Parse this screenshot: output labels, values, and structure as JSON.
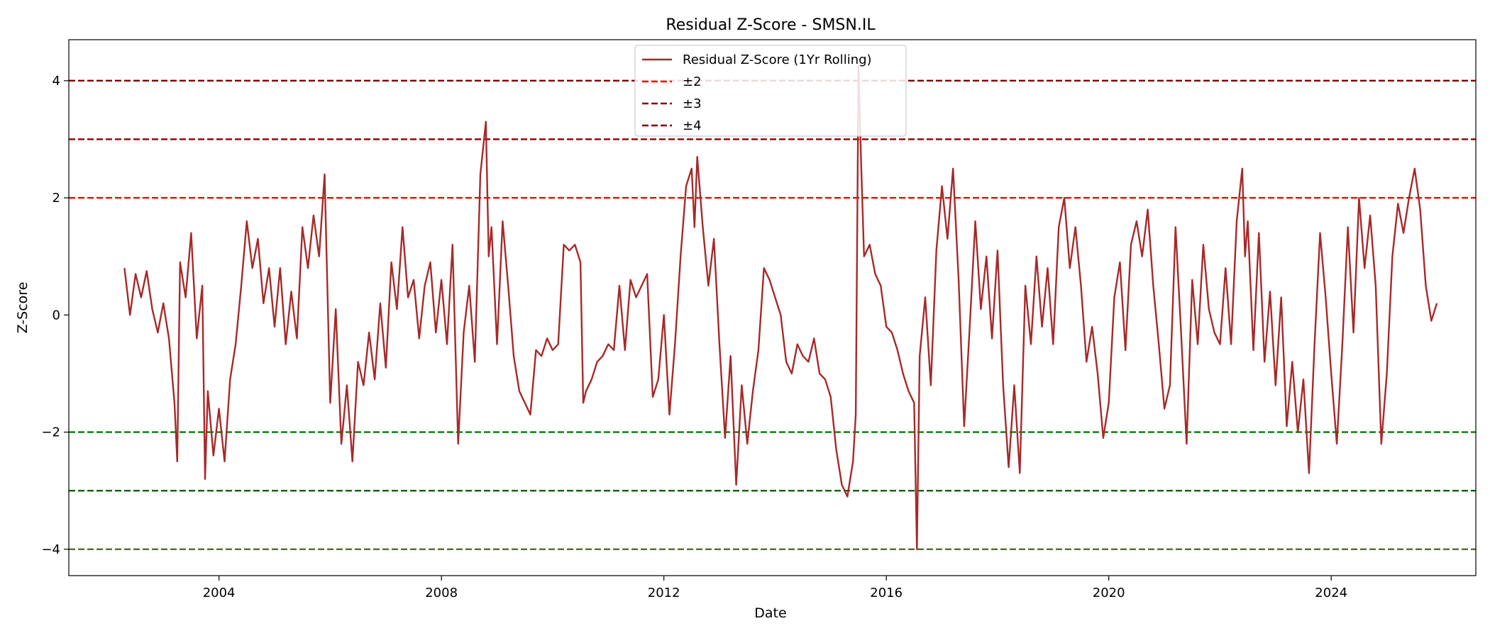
{
  "chart_data": {
    "type": "line",
    "title": "Residual Z-Score - SMSN.IL",
    "xlabel": "Date",
    "ylabel": "Z-Score",
    "xlim": [
      2001.3,
      2026.6
    ],
    "ylim": [
      -4.45,
      4.7
    ],
    "grid": false,
    "legend_position": "top-center",
    "x_ticks": [
      2004,
      2008,
      2012,
      2016,
      2020,
      2024
    ],
    "x_tick_labels": [
      "2004",
      "2008",
      "2012",
      "2016",
      "2020",
      "2024"
    ],
    "y_ticks": [
      -4,
      -2,
      0,
      2,
      4
    ],
    "y_tick_labels": [
      "−4",
      "−2",
      "0",
      "2",
      "4"
    ],
    "series": [
      {
        "name": "Residual Z-Score (1Yr Rolling)",
        "color": "#a52a2a",
        "points": [
          [
            2002.3,
            0.8
          ],
          [
            2002.4,
            0.0
          ],
          [
            2002.5,
            0.7
          ],
          [
            2002.6,
            0.3
          ],
          [
            2002.7,
            0.75
          ],
          [
            2002.8,
            0.1
          ],
          [
            2002.9,
            -0.3
          ],
          [
            2003.0,
            0.2
          ],
          [
            2003.1,
            -0.4
          ],
          [
            2003.2,
            -1.5
          ],
          [
            2003.25,
            -2.5
          ],
          [
            2003.3,
            0.9
          ],
          [
            2003.4,
            0.3
          ],
          [
            2003.5,
            1.4
          ],
          [
            2003.6,
            -0.4
          ],
          [
            2003.7,
            0.5
          ],
          [
            2003.75,
            -2.8
          ],
          [
            2003.8,
            -1.3
          ],
          [
            2003.9,
            -2.4
          ],
          [
            2004.0,
            -1.6
          ],
          [
            2004.1,
            -2.5
          ],
          [
            2004.2,
            -1.1
          ],
          [
            2004.3,
            -0.5
          ],
          [
            2004.4,
            0.5
          ],
          [
            2004.5,
            1.6
          ],
          [
            2004.6,
            0.8
          ],
          [
            2004.7,
            1.3
          ],
          [
            2004.8,
            0.2
          ],
          [
            2004.9,
            0.8
          ],
          [
            2005.0,
            -0.2
          ],
          [
            2005.1,
            0.8
          ],
          [
            2005.2,
            -0.5
          ],
          [
            2005.3,
            0.4
          ],
          [
            2005.4,
            -0.4
          ],
          [
            2005.5,
            1.5
          ],
          [
            2005.6,
            0.8
          ],
          [
            2005.7,
            1.7
          ],
          [
            2005.8,
            1.0
          ],
          [
            2005.9,
            2.4
          ],
          [
            2006.0,
            -1.5
          ],
          [
            2006.1,
            0.1
          ],
          [
            2006.2,
            -2.2
          ],
          [
            2006.3,
            -1.2
          ],
          [
            2006.4,
            -2.5
          ],
          [
            2006.5,
            -0.8
          ],
          [
            2006.6,
            -1.2
          ],
          [
            2006.7,
            -0.3
          ],
          [
            2006.8,
            -1.1
          ],
          [
            2006.9,
            0.2
          ],
          [
            2007.0,
            -0.9
          ],
          [
            2007.1,
            0.9
          ],
          [
            2007.2,
            0.1
          ],
          [
            2007.3,
            1.5
          ],
          [
            2007.4,
            0.3
          ],
          [
            2007.5,
            0.6
          ],
          [
            2007.6,
            -0.4
          ],
          [
            2007.7,
            0.5
          ],
          [
            2007.8,
            0.9
          ],
          [
            2007.9,
            -0.3
          ],
          [
            2008.0,
            0.6
          ],
          [
            2008.1,
            -0.5
          ],
          [
            2008.2,
            1.2
          ],
          [
            2008.3,
            -2.2
          ],
          [
            2008.4,
            -0.3
          ],
          [
            2008.5,
            0.5
          ],
          [
            2008.6,
            -0.8
          ],
          [
            2008.7,
            2.4
          ],
          [
            2008.8,
            3.3
          ],
          [
            2008.85,
            1.0
          ],
          [
            2008.9,
            1.5
          ],
          [
            2009.0,
            -0.5
          ],
          [
            2009.1,
            1.6
          ],
          [
            2009.2,
            0.5
          ],
          [
            2009.3,
            -0.7
          ],
          [
            2009.4,
            -1.3
          ],
          [
            2009.5,
            -1.5
          ],
          [
            2009.6,
            -1.7
          ],
          [
            2009.7,
            -0.6
          ],
          [
            2009.8,
            -0.7
          ],
          [
            2009.9,
            -0.4
          ],
          [
            2010.0,
            -0.6
          ],
          [
            2010.1,
            -0.5
          ],
          [
            2010.2,
            1.2
          ],
          [
            2010.3,
            1.1
          ],
          [
            2010.4,
            1.2
          ],
          [
            2010.5,
            0.9
          ],
          [
            2010.55,
            -1.5
          ],
          [
            2010.6,
            -1.3
          ],
          [
            2010.7,
            -1.1
          ],
          [
            2010.8,
            -0.8
          ],
          [
            2010.9,
            -0.7
          ],
          [
            2011.0,
            -0.5
          ],
          [
            2011.1,
            -0.6
          ],
          [
            2011.2,
            0.5
          ],
          [
            2011.3,
            -0.6
          ],
          [
            2011.4,
            0.6
          ],
          [
            2011.5,
            0.3
          ],
          [
            2011.6,
            0.5
          ],
          [
            2011.7,
            0.7
          ],
          [
            2011.8,
            -1.4
          ],
          [
            2011.9,
            -1.1
          ],
          [
            2012.0,
            0.0
          ],
          [
            2012.1,
            -1.7
          ],
          [
            2012.2,
            -0.5
          ],
          [
            2012.3,
            1.0
          ],
          [
            2012.4,
            2.2
          ],
          [
            2012.5,
            2.5
          ],
          [
            2012.55,
            1.5
          ],
          [
            2012.6,
            2.7
          ],
          [
            2012.7,
            1.5
          ],
          [
            2012.8,
            0.5
          ],
          [
            2012.9,
            1.3
          ],
          [
            2013.0,
            -0.5
          ],
          [
            2013.1,
            -2.1
          ],
          [
            2013.2,
            -0.7
          ],
          [
            2013.3,
            -2.9
          ],
          [
            2013.4,
            -1.2
          ],
          [
            2013.5,
            -2.2
          ],
          [
            2013.6,
            -1.3
          ],
          [
            2013.7,
            -0.6
          ],
          [
            2013.8,
            0.8
          ],
          [
            2013.9,
            0.6
          ],
          [
            2014.0,
            0.3
          ],
          [
            2014.1,
            0.0
          ],
          [
            2014.2,
            -0.8
          ],
          [
            2014.3,
            -1.0
          ],
          [
            2014.4,
            -0.5
          ],
          [
            2014.5,
            -0.7
          ],
          [
            2014.6,
            -0.8
          ],
          [
            2014.7,
            -0.4
          ],
          [
            2014.8,
            -1.0
          ],
          [
            2014.9,
            -1.1
          ],
          [
            2015.0,
            -1.4
          ],
          [
            2015.1,
            -2.3
          ],
          [
            2015.2,
            -2.9
          ],
          [
            2015.3,
            -3.1
          ],
          [
            2015.4,
            -2.5
          ],
          [
            2015.45,
            -1.7
          ],
          [
            2015.5,
            4.25
          ],
          [
            2015.55,
            2.5
          ],
          [
            2015.6,
            1.0
          ],
          [
            2015.7,
            1.2
          ],
          [
            2015.8,
            0.7
          ],
          [
            2015.9,
            0.5
          ],
          [
            2016.0,
            -0.2
          ],
          [
            2016.1,
            -0.3
          ],
          [
            2016.2,
            -0.6
          ],
          [
            2016.3,
            -1.0
          ],
          [
            2016.4,
            -1.3
          ],
          [
            2016.5,
            -1.5
          ],
          [
            2016.55,
            -4.0
          ],
          [
            2016.6,
            -0.7
          ],
          [
            2016.7,
            0.3
          ],
          [
            2016.8,
            -1.2
          ],
          [
            2016.9,
            1.1
          ],
          [
            2017.0,
            2.2
          ],
          [
            2017.1,
            1.3
          ],
          [
            2017.2,
            2.5
          ],
          [
            2017.3,
            0.6
          ],
          [
            2017.4,
            -1.9
          ],
          [
            2017.5,
            -0.2
          ],
          [
            2017.6,
            1.6
          ],
          [
            2017.7,
            0.1
          ],
          [
            2017.8,
            1.0
          ],
          [
            2017.9,
            -0.4
          ],
          [
            2018.0,
            1.1
          ],
          [
            2018.1,
            -1.2
          ],
          [
            2018.2,
            -2.6
          ],
          [
            2018.3,
            -1.2
          ],
          [
            2018.4,
            -2.7
          ],
          [
            2018.5,
            0.5
          ],
          [
            2018.6,
            -0.5
          ],
          [
            2018.7,
            1.0
          ],
          [
            2018.8,
            -0.2
          ],
          [
            2018.9,
            0.8
          ],
          [
            2019.0,
            -0.5
          ],
          [
            2019.1,
            1.5
          ],
          [
            2019.2,
            2.0
          ],
          [
            2019.3,
            0.8
          ],
          [
            2019.4,
            1.5
          ],
          [
            2019.5,
            0.5
          ],
          [
            2019.6,
            -0.8
          ],
          [
            2019.7,
            -0.2
          ],
          [
            2019.8,
            -1.0
          ],
          [
            2019.9,
            -2.1
          ],
          [
            2020.0,
            -1.5
          ],
          [
            2020.1,
            0.3
          ],
          [
            2020.2,
            0.9
          ],
          [
            2020.3,
            -0.6
          ],
          [
            2020.4,
            1.2
          ],
          [
            2020.5,
            1.6
          ],
          [
            2020.6,
            1.0
          ],
          [
            2020.7,
            1.8
          ],
          [
            2020.8,
            0.5
          ],
          [
            2020.9,
            -0.5
          ],
          [
            2021.0,
            -1.6
          ],
          [
            2021.1,
            -1.2
          ],
          [
            2021.2,
            1.5
          ],
          [
            2021.3,
            -0.3
          ],
          [
            2021.4,
            -2.2
          ],
          [
            2021.5,
            0.6
          ],
          [
            2021.6,
            -0.5
          ],
          [
            2021.7,
            1.2
          ],
          [
            2021.8,
            0.1
          ],
          [
            2021.9,
            -0.3
          ],
          [
            2022.0,
            -0.5
          ],
          [
            2022.1,
            0.8
          ],
          [
            2022.2,
            -0.5
          ],
          [
            2022.3,
            1.6
          ],
          [
            2022.4,
            2.5
          ],
          [
            2022.45,
            1.0
          ],
          [
            2022.5,
            1.6
          ],
          [
            2022.6,
            -0.6
          ],
          [
            2022.7,
            1.4
          ],
          [
            2022.8,
            -0.8
          ],
          [
            2022.9,
            0.4
          ],
          [
            2023.0,
            -1.2
          ],
          [
            2023.1,
            0.3
          ],
          [
            2023.2,
            -1.9
          ],
          [
            2023.3,
            -0.8
          ],
          [
            2023.4,
            -2.0
          ],
          [
            2023.5,
            -1.1
          ],
          [
            2023.6,
            -2.7
          ],
          [
            2023.7,
            -0.5
          ],
          [
            2023.8,
            1.4
          ],
          [
            2023.9,
            0.3
          ],
          [
            2024.0,
            -1.0
          ],
          [
            2024.1,
            -2.2
          ],
          [
            2024.2,
            -0.5
          ],
          [
            2024.3,
            1.5
          ],
          [
            2024.4,
            -0.3
          ],
          [
            2024.5,
            2.0
          ],
          [
            2024.6,
            0.8
          ],
          [
            2024.7,
            1.7
          ],
          [
            2024.8,
            0.5
          ],
          [
            2024.9,
            -2.2
          ],
          [
            2025.0,
            -1.0
          ],
          [
            2025.1,
            1.0
          ],
          [
            2025.2,
            1.9
          ],
          [
            2025.3,
            1.4
          ],
          [
            2025.4,
            2.0
          ],
          [
            2025.5,
            2.5
          ],
          [
            2025.6,
            1.8
          ],
          [
            2025.7,
            0.5
          ],
          [
            2025.8,
            -0.1
          ],
          [
            2025.9,
            0.2
          ]
        ]
      }
    ],
    "reference_lines": [
      {
        "name": "±2",
        "values": [
          2,
          -2
        ],
        "color": "#ff0000",
        "color_lower": "#008000",
        "style": "dashed"
      },
      {
        "name": "±3",
        "values": [
          3,
          -3
        ],
        "color": "#8b0000",
        "color_lower": "#006400",
        "style": "dashed"
      },
      {
        "name": "±4",
        "values": [
          4,
          -4
        ],
        "color": "#800000",
        "color_lower": "#556b2f",
        "style": "dashed"
      }
    ]
  }
}
